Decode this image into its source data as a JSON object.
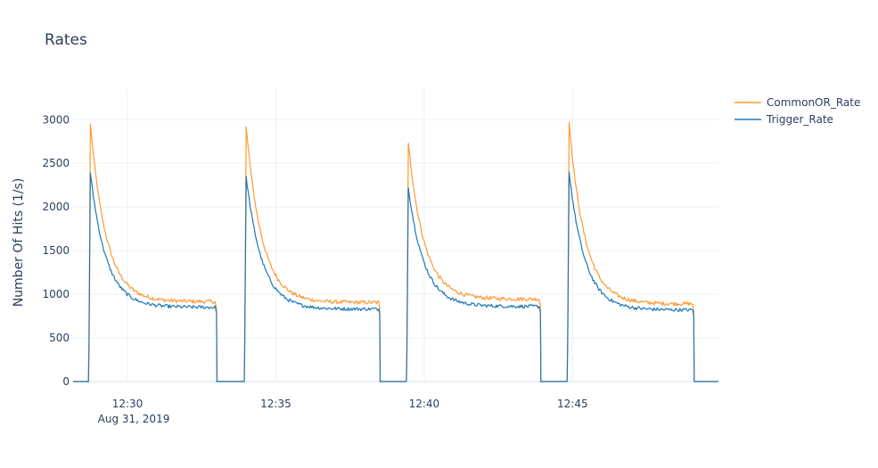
{
  "chart_data": {
    "type": "line",
    "title": "Rates",
    "xlabel": "",
    "ylabel": "Number Of Hits (1/s)",
    "x_axis": {
      "type": "time",
      "date": "Aug 31, 2019",
      "range": [
        "12:28:10",
        "12:49:55"
      ],
      "ticks": [
        "12:30",
        "12:35",
        "12:40",
        "12:45"
      ],
      "tick_sublabel": "Aug 31, 2019"
    },
    "y_axis": {
      "range": [
        0,
        3350
      ],
      "ticks": [
        0,
        500,
        1000,
        1500,
        2000,
        2500,
        3000
      ]
    },
    "grid": true,
    "legend": {
      "placement": "top-right"
    },
    "series": [
      {
        "name": "CommonOR_Rate",
        "color": "#ff9933",
        "cycles": [
          {
            "off": "12:28:10",
            "on": "12:28:42",
            "peak": 2950,
            "plateau": 915,
            "end": "12:33:00"
          },
          {
            "off": "12:33:00",
            "on": "12:33:57",
            "peak": 2920,
            "plateau": 905,
            "end": "12:38:30"
          },
          {
            "off": "12:38:30",
            "on": "12:39:25",
            "peak": 2730,
            "plateau": 945,
            "end": "12:43:55"
          },
          {
            "off": "12:43:55",
            "on": "12:44:50",
            "peak": 2970,
            "plateau": 890,
            "end": "12:49:05"
          }
        ],
        "final_off": "12:49:55"
      },
      {
        "name": "Trigger_Rate",
        "color": "#1f77b4",
        "cycles": [
          {
            "off": "12:28:10",
            "on": "12:28:42",
            "peak": 2390,
            "plateau": 850,
            "end": "12:33:00"
          },
          {
            "off": "12:33:00",
            "on": "12:33:57",
            "peak": 2350,
            "plateau": 830,
            "end": "12:38:30"
          },
          {
            "off": "12:38:30",
            "on": "12:39:25",
            "peak": 2220,
            "plateau": 860,
            "end": "12:43:55"
          },
          {
            "off": "12:43:55",
            "on": "12:44:50",
            "peak": 2400,
            "plateau": 820,
            "end": "12:49:05"
          }
        ],
        "final_off": "12:49:55"
      }
    ]
  }
}
